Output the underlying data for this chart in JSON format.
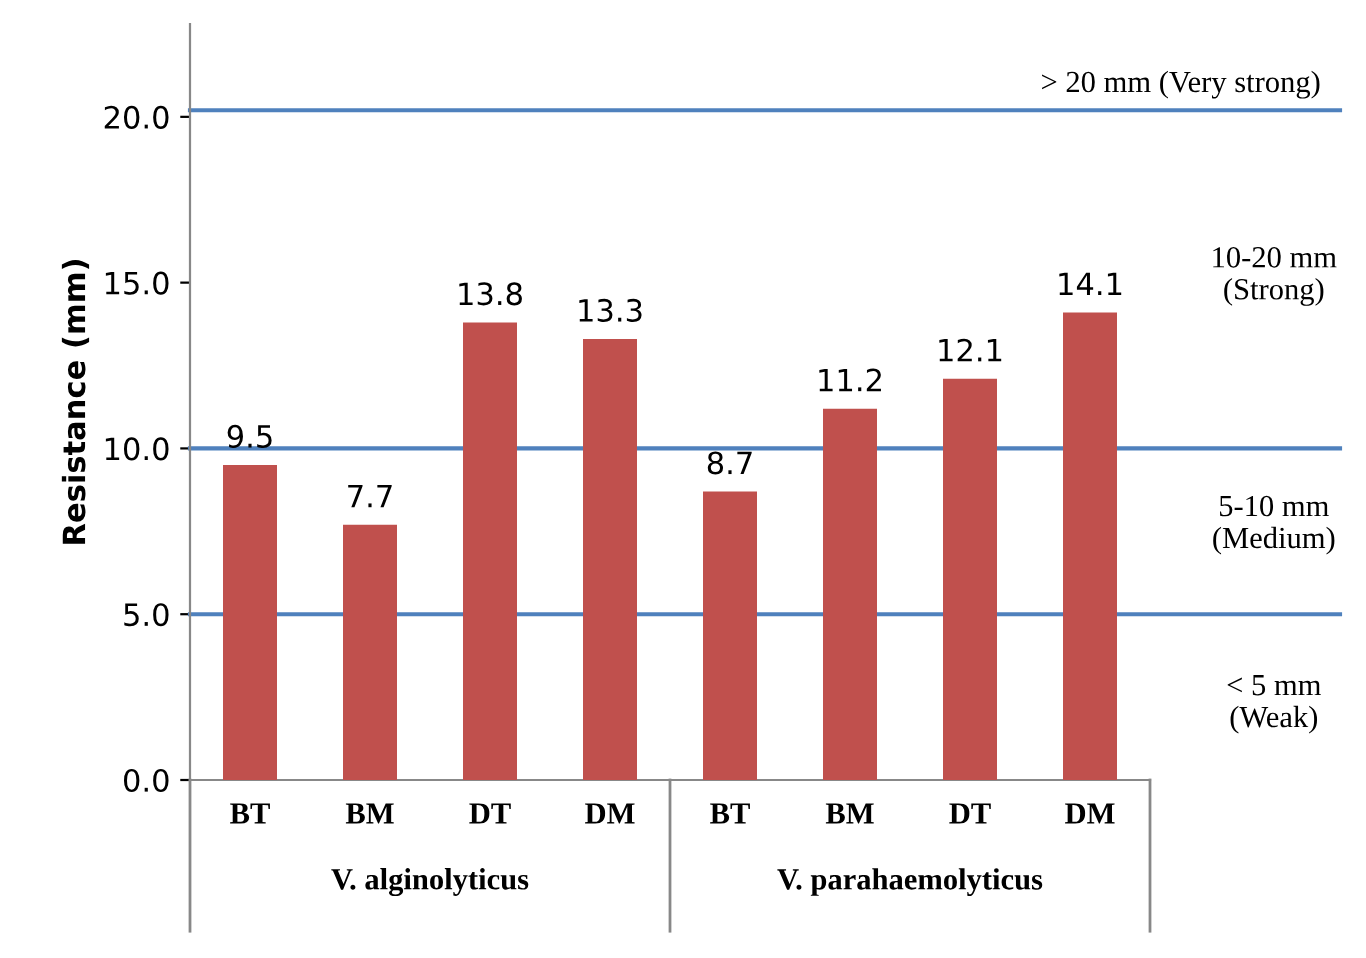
{
  "chart_data": {
    "type": "bar",
    "ylabel": "Resistance (mm)",
    "categories": [
      "BT",
      "BM",
      "DT",
      "DM",
      "BT",
      "BM",
      "DT",
      "DM"
    ],
    "values": [
      9.5,
      7.7,
      13.8,
      13.3,
      8.7,
      11.2,
      12.1,
      14.1
    ],
    "color": "#c0504d",
    "data_labels": true,
    "ylim": [
      0,
      22.8
    ],
    "yticks": [
      {
        "value": 0,
        "label": "0.0"
      },
      {
        "value": 5,
        "label": "5.0"
      },
      {
        "value": 10,
        "label": "10.0"
      },
      {
        "value": 15,
        "label": "15.0"
      },
      {
        "value": 20,
        "label": "20.0"
      }
    ],
    "grid": false,
    "ref_lines": [
      {
        "axis": "y",
        "value": 5,
        "label": null,
        "color": "#4f81bd"
      },
      {
        "axis": "y",
        "value": 10,
        "label": null,
        "color": "#4f81bd"
      },
      {
        "axis": "y",
        "value": 20.2,
        "label": "> 20 mm (Very strong)",
        "color": "#4f81bd"
      }
    ],
    "annotations": [
      "V. alginolyticus",
      "V. parahaemolyticus",
      "10-20 mm\n(Strong)",
      "5-10 mm\n(Medium)",
      "< 5 mm\n(Weak)"
    ]
  }
}
